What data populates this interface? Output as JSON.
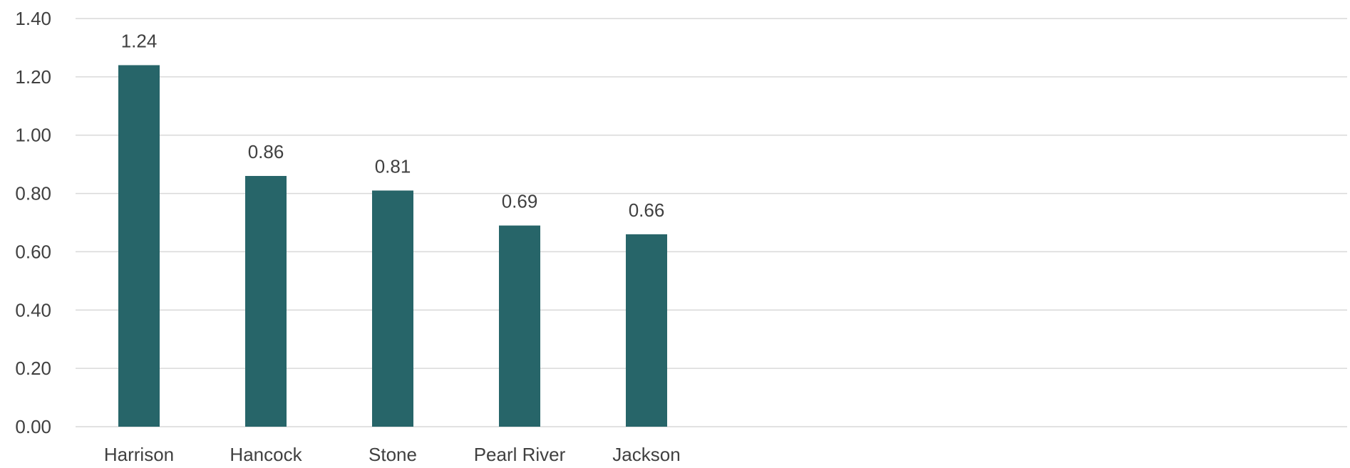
{
  "chart_data": {
    "type": "bar",
    "categories": [
      "Harrison",
      "Hancock",
      "Stone",
      "Pearl River",
      "Jackson"
    ],
    "values": [
      1.24,
      0.86,
      0.81,
      0.69,
      0.66
    ],
    "data_labels": [
      "1.24",
      "0.86",
      "0.81",
      "0.69",
      "0.66"
    ],
    "yticks": [
      "0.00",
      "0.20",
      "0.40",
      "0.60",
      "0.80",
      "1.00",
      "1.20",
      "1.40"
    ],
    "ylim": [
      0,
      1.4
    ],
    "grid": true,
    "legend": "none",
    "bar_color": "#276569"
  }
}
